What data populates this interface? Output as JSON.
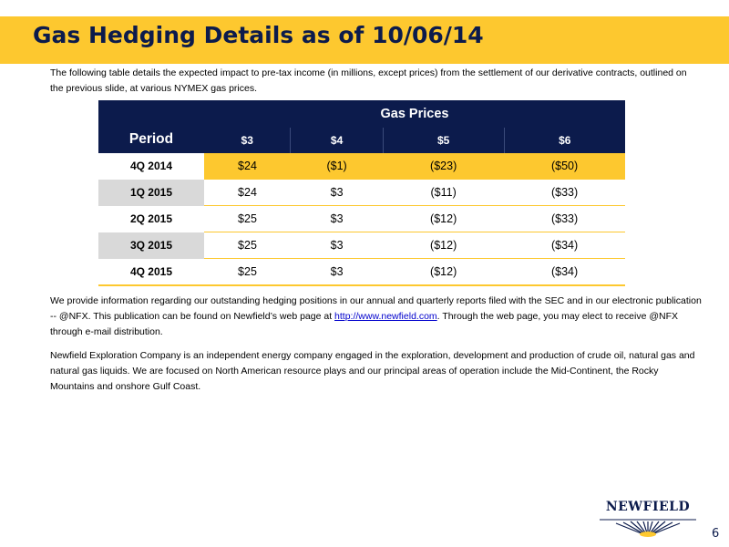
{
  "title": "Gas Hedging Details as of 10/06/14",
  "intro": "The following table details the expected impact to pre-tax income (in millions, except prices) from the settlement of our derivative contracts, outlined on the previous slide, at various NYMEX gas prices.",
  "table": {
    "period_header": "Period",
    "gas_prices_header": "Gas Prices",
    "price_headers": [
      "$3",
      "$4",
      "$5",
      "$6"
    ],
    "rows": [
      {
        "period": "4Q 2014",
        "values": [
          "$24",
          "($1)",
          "($23)",
          "($50)"
        ]
      },
      {
        "period": "1Q 2015",
        "values": [
          "$24",
          "$3",
          "($11)",
          "($33)"
        ]
      },
      {
        "period": "2Q 2015",
        "values": [
          "$25",
          "$3",
          "($12)",
          "($33)"
        ]
      },
      {
        "period": "3Q 2015",
        "values": [
          "$25",
          "$3",
          "($12)",
          "($34)"
        ]
      },
      {
        "period": "4Q 2015",
        "values": [
          "$25",
          "$3",
          "($12)",
          "($34)"
        ]
      }
    ]
  },
  "para1": {
    "before_link": "We provide information regarding our outstanding hedging positions in our annual and quarterly reports filed with the SEC and in our electronic publication -- @NFX.  This publication can be found on Newfield’s web page at ",
    "link": "http://www.newfield.com",
    "after_link": ". Through the web page, you may elect to receive @NFX through e-mail distribution."
  },
  "para2": "Newfield Exploration Company is an independent energy company engaged in the exploration, development and production of crude oil, natural gas and natural gas liquids. We are focused on North American resource plays and our principal areas of operation include the Mid-Continent, the Rocky Mountains and onshore Gulf Coast.",
  "logo_text": "NEWFIELD",
  "page_number": "6",
  "colors": {
    "navy": "#0c1b4c",
    "gold": "#fdc82f",
    "shade": "#d9d9d9"
  }
}
